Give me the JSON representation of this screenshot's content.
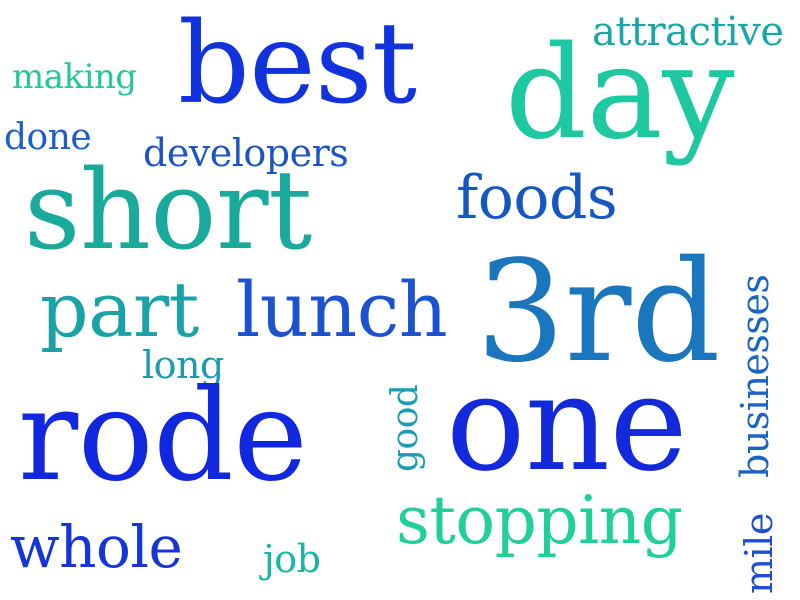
{
  "word_cloud": {
    "words": [
      {
        "id": "best",
        "text": "best",
        "color": "#1133dd"
      },
      {
        "id": "day",
        "text": "day",
        "color": "#1ec8a0"
      },
      {
        "id": "attractive",
        "text": "attractive",
        "color": "#17a7a7"
      },
      {
        "id": "making",
        "text": "making",
        "color": "#23c89a"
      },
      {
        "id": "done",
        "text": "done",
        "color": "#1d5ec8"
      },
      {
        "id": "developers",
        "text": "developers",
        "color": "#1d55c4"
      },
      {
        "id": "short",
        "text": "short",
        "color": "#19aa9c"
      },
      {
        "id": "foods",
        "text": "foods",
        "color": "#1757c4"
      },
      {
        "id": "part",
        "text": "part",
        "color": "#1aa3a6"
      },
      {
        "id": "lunch",
        "text": "lunch",
        "color": "#1c52d0"
      },
      {
        "id": "3rd",
        "text": "3rd",
        "color": "#1b77bd"
      },
      {
        "id": "long",
        "text": "long",
        "color": "#1d9aae"
      },
      {
        "id": "rode",
        "text": "rode",
        "color": "#1127e0"
      },
      {
        "id": "one",
        "text": "one",
        "color": "#1329dc"
      },
      {
        "id": "good",
        "text": "good",
        "color": "#1a9db0"
      },
      {
        "id": "businesses",
        "text": "businesses",
        "color": "#1c64c2"
      },
      {
        "id": "stopping",
        "text": "stopping",
        "color": "#1fd09a"
      },
      {
        "id": "mile",
        "text": "mile",
        "color": "#1f4ed6"
      },
      {
        "id": "whole",
        "text": "whole",
        "color": "#1535d8"
      },
      {
        "id": "job",
        "text": "job",
        "color": "#1ab5a4"
      }
    ]
  }
}
